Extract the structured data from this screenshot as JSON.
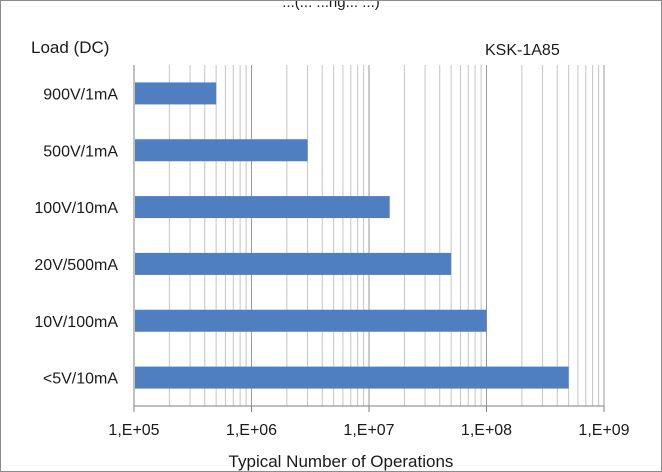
{
  "chart_data": {
    "type": "bar",
    "orientation": "horizontal",
    "title": "",
    "title_partial_visible": "...(...     ...ng...     ...)",
    "y_axis_title": "Load (DC)",
    "annotation": "KSK-1A85",
    "xlabel": "Typical Number of Operations",
    "x_scale": "log",
    "xlim": [
      100000,
      1000000000
    ],
    "x_tick_labels": [
      "1,E+05",
      "1,E+06",
      "1,E+07",
      "1,E+08",
      "1,E+09"
    ],
    "categories": [
      "900V/1mA",
      "500V/1mA",
      "100V/10mA",
      "20V/500mA",
      "10V/100mA",
      "<5V/10mA"
    ],
    "values": [
      500000,
      3000000,
      15000000,
      50000000,
      100000000,
      500000000
    ],
    "bar_color": "#4f7fc0",
    "grid": "vertical minor and major log gridlines",
    "legend": "none"
  }
}
